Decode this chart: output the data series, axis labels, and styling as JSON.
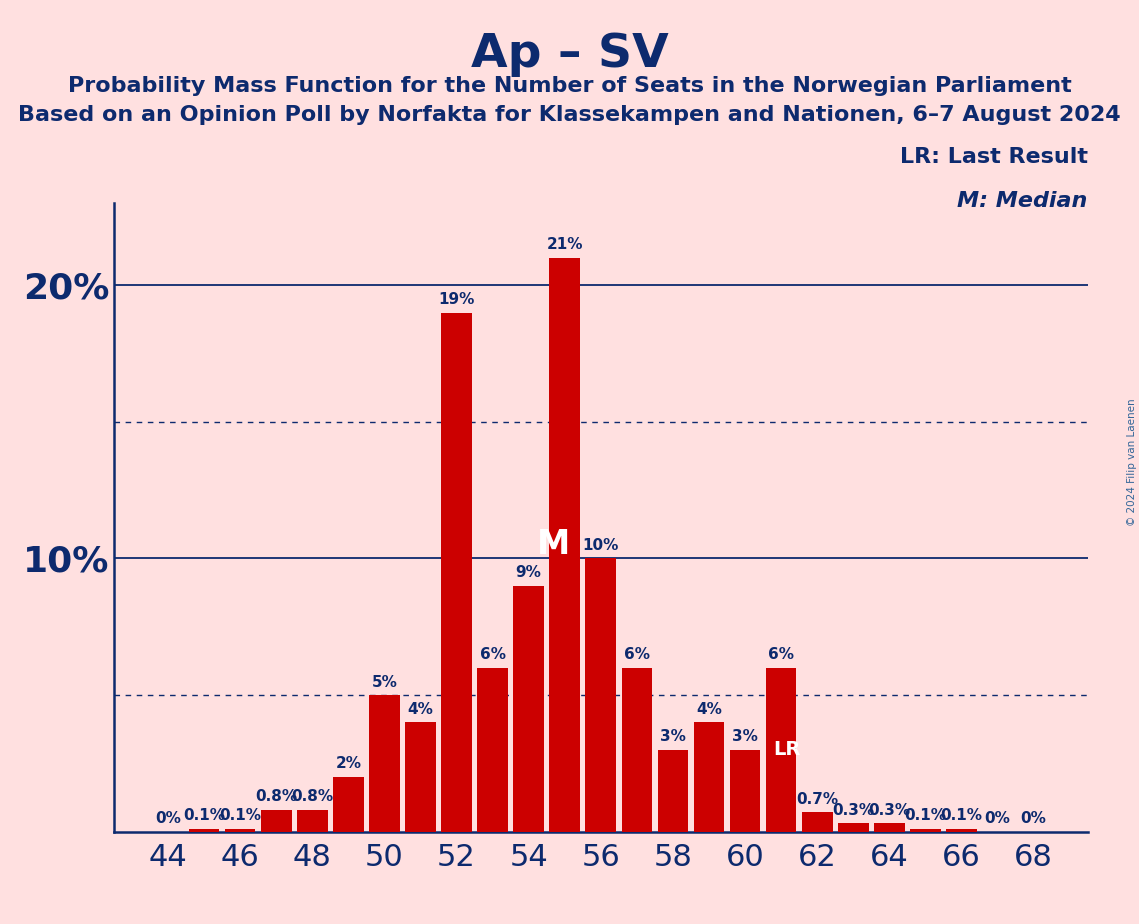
{
  "title": "Ap – SV",
  "subtitle1": "Probability Mass Function for the Number of Seats in the Norwegian Parliament",
  "subtitle2": "Based on an Opinion Poll by Norfakta for Klassekampen and Nationen, 6–7 August 2024",
  "copyright": "© 2024 Filip van Laenen",
  "legend_lr": "LR: Last Result",
  "legend_m": "M: Median",
  "seats": [
    44,
    45,
    46,
    47,
    48,
    49,
    50,
    51,
    52,
    53,
    54,
    55,
    56,
    57,
    58,
    59,
    60,
    61,
    62,
    63,
    64,
    65,
    66,
    67,
    68
  ],
  "values": [
    0.0,
    0.1,
    0.1,
    0.8,
    0.8,
    2.0,
    5.0,
    4.0,
    19.0,
    6.0,
    9.0,
    21.0,
    10.0,
    6.0,
    3.0,
    4.0,
    3.0,
    6.0,
    0.7,
    0.3,
    0.3,
    0.1,
    0.1,
    0.0,
    0.0
  ],
  "bar_color": "#CC0000",
  "background_color": "#FFE0E0",
  "text_color": "#0D2A6E",
  "bar_label_color_dark": "#0D2A6E",
  "bar_label_color_light": "#FFFFFF",
  "median_seat": 55,
  "lr_seat": 61,
  "ylim_max": 23,
  "solid_lines": [
    10,
    20
  ],
  "dotted_lines": [
    5,
    15
  ],
  "title_fontsize": 34,
  "subtitle_fontsize": 16,
  "legend_fontsize": 16,
  "bar_label_fontsize": 11,
  "ytick_fontsize": 26,
  "xtick_fontsize": 22
}
